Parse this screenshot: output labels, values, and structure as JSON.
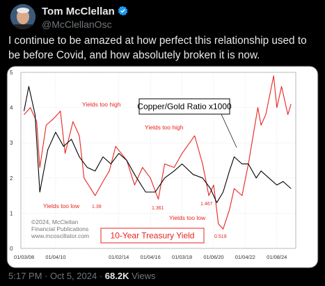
{
  "author": {
    "name": "Tom McClellan",
    "handle": "@McClellanOsc"
  },
  "text": "I continue to be amazed at how perfect this relationship used to be before Covid, and how absolutely broken it is now.",
  "footer": {
    "time": "5:17 PM",
    "date": "Oct 5, 2024",
    "views": "68.2K",
    "views_label": "Views"
  },
  "chart_data": {
    "type": "line",
    "xlim": [
      2007.8,
      2025.2
    ],
    "xticks": [
      {
        "value": 2008,
        "label": "01/03/08"
      },
      {
        "value": 2010,
        "label": "01/04/10"
      },
      {
        "value": 2014,
        "label": "01/02/14"
      },
      {
        "value": 2016,
        "label": "01/04/16"
      },
      {
        "value": 2018,
        "label": "01/03/18"
      },
      {
        "value": 2020,
        "label": "01/06/20"
      },
      {
        "value": 2022,
        "label": "01/04/22"
      },
      {
        "value": 2024,
        "label": "01/08/24"
      }
    ],
    "ylim": [
      0,
      5
    ],
    "yticks": [
      0,
      1,
      2,
      3,
      4,
      5
    ],
    "grid": true,
    "series": [
      {
        "name": "10-Year Treasury Yield",
        "color": "#e8231f",
        "x": [
          2008.0,
          2008.4,
          2008.8,
          2009.0,
          2009.4,
          2009.9,
          2010.3,
          2010.6,
          2011.1,
          2011.5,
          2011.8,
          2012.5,
          2013.0,
          2013.4,
          2013.8,
          2014.5,
          2015.0,
          2015.5,
          2016.0,
          2016.5,
          2016.9,
          2017.5,
          2018.0,
          2018.8,
          2019.3,
          2019.7,
          2020.0,
          2020.3,
          2020.6,
          2021.0,
          2021.3,
          2021.8,
          2022.2,
          2022.8,
          2023.0,
          2023.3,
          2023.8,
          2024.0,
          2024.3,
          2024.7,
          2024.9
        ],
        "values": [
          3.8,
          4.0,
          3.6,
          2.3,
          3.5,
          3.7,
          3.9,
          2.7,
          3.6,
          3.2,
          2.0,
          1.5,
          1.9,
          2.2,
          2.9,
          2.5,
          1.8,
          2.3,
          2.0,
          1.4,
          2.4,
          2.3,
          2.7,
          3.2,
          2.4,
          1.5,
          1.8,
          0.7,
          0.55,
          1.1,
          1.7,
          1.5,
          2.4,
          4.0,
          3.5,
          3.8,
          4.9,
          4.0,
          4.6,
          3.8,
          4.1
        ]
      },
      {
        "name": "Copper/Gold Ratio x1000",
        "color": "#000000",
        "x": [
          2008.0,
          2008.3,
          2008.7,
          2009.0,
          2009.5,
          2010.0,
          2010.5,
          2011.0,
          2011.5,
          2012.0,
          2012.5,
          2013.0,
          2013.5,
          2014.0,
          2014.5,
          2015.0,
          2015.7,
          2016.3,
          2016.9,
          2017.5,
          2018.0,
          2018.7,
          2019.3,
          2019.8,
          2020.2,
          2020.6,
          2021.0,
          2021.3,
          2021.8,
          2022.2,
          2022.7,
          2023.0,
          2023.5,
          2024.0,
          2024.4,
          2024.9
        ],
        "values": [
          3.9,
          4.6,
          3.8,
          1.6,
          2.8,
          3.3,
          2.9,
          3.1,
          2.6,
          2.3,
          2.2,
          2.6,
          2.4,
          2.7,
          2.5,
          2.1,
          1.6,
          1.6,
          2.0,
          2.2,
          2.4,
          2.1,
          2.0,
          1.7,
          1.3,
          1.6,
          2.2,
          2.6,
          2.4,
          2.4,
          2.0,
          2.2,
          2.0,
          1.8,
          1.9,
          1.7
        ]
      }
    ],
    "annotations": [
      "Yields too high",
      "Yields too low",
      "1.39",
      "1.361",
      "Yields too high",
      "1.467",
      "Yields too low",
      "0.519"
    ],
    "copyright": [
      "©2024, McClellan",
      "Financial Publications",
      "www.mcoscillator.com"
    ]
  }
}
